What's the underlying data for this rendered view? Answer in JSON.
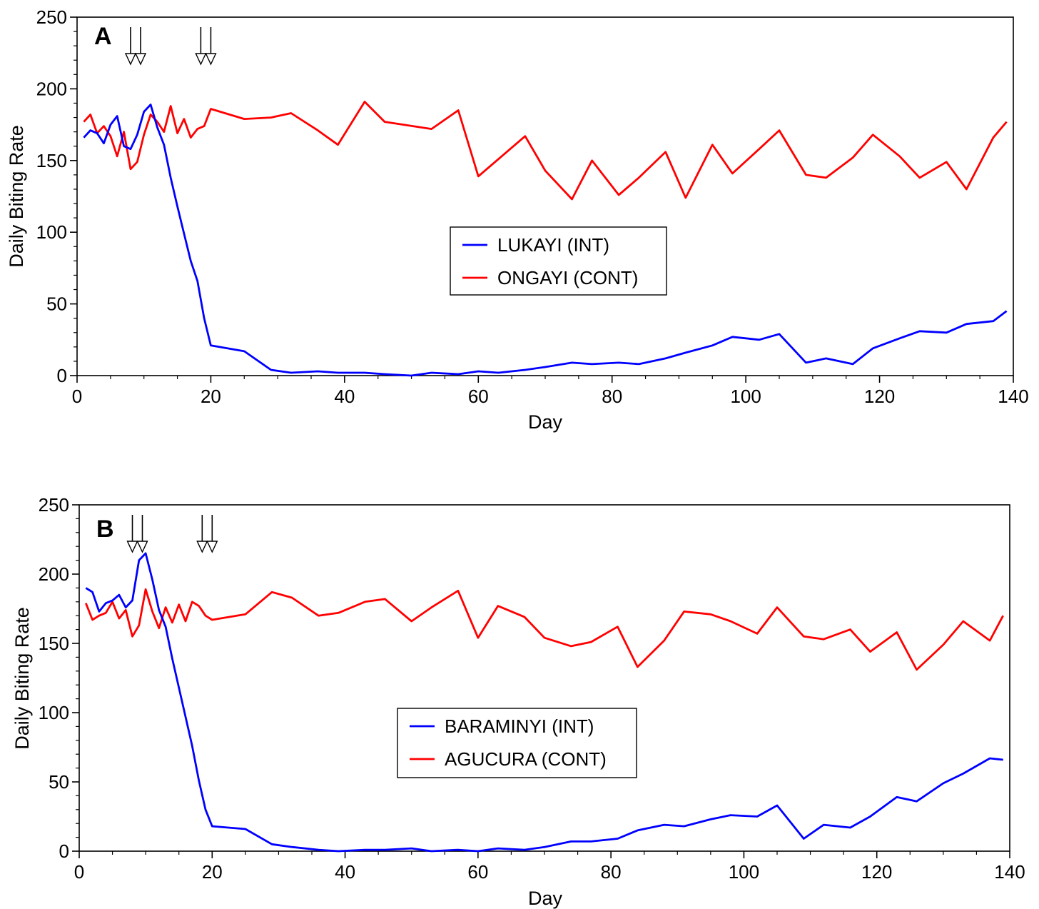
{
  "chart_data": [
    {
      "type": "line",
      "panel": "A",
      "xlabel": "Day",
      "ylabel": "Daily Biting Rate",
      "xlim": [
        0,
        140
      ],
      "ylim": [
        0,
        250
      ],
      "xticks": [
        0,
        20,
        40,
        60,
        80,
        100,
        120,
        140
      ],
      "yticks": [
        0,
        50,
        100,
        150,
        200,
        250
      ],
      "legend_position": "center",
      "arrows_at_days": [
        8,
        9.5,
        18.5,
        20
      ],
      "series": [
        {
          "name": "LUKAYI (INT)",
          "color": "#0000ff",
          "points": [
            [
              1,
              166
            ],
            [
              2,
              171
            ],
            [
              3,
              169
            ],
            [
              4,
              162
            ],
            [
              5,
              175
            ],
            [
              6,
              181
            ],
            [
              7,
              160
            ],
            [
              8,
              158
            ],
            [
              9,
              168
            ],
            [
              10,
              184
            ],
            [
              11,
              189
            ],
            [
              12,
              173
            ],
            [
              13,
              161
            ],
            [
              14,
              138
            ],
            [
              15,
              118
            ],
            [
              16,
              99
            ],
            [
              17,
              80
            ],
            [
              18,
              66
            ],
            [
              19,
              40
            ],
            [
              20,
              21
            ],
            [
              25,
              17
            ],
            [
              29,
              4
            ],
            [
              32,
              2
            ],
            [
              36,
              3
            ],
            [
              39,
              2
            ],
            [
              43,
              2
            ],
            [
              46,
              1
            ],
            [
              50,
              0
            ],
            [
              53,
              2
            ],
            [
              57,
              1
            ],
            [
              60,
              3
            ],
            [
              63,
              2
            ],
            [
              67,
              4
            ],
            [
              70,
              6
            ],
            [
              74,
              9
            ],
            [
              77,
              8
            ],
            [
              81,
              9
            ],
            [
              84,
              8
            ],
            [
              88,
              12
            ],
            [
              91,
              16
            ],
            [
              95,
              21
            ],
            [
              98,
              27
            ],
            [
              102,
              25
            ],
            [
              105,
              29
            ],
            [
              109,
              9
            ],
            [
              112,
              12
            ],
            [
              116,
              8
            ],
            [
              119,
              19
            ],
            [
              123,
              26
            ],
            [
              126,
              31
            ],
            [
              130,
              30
            ],
            [
              133,
              36
            ],
            [
              137,
              38
            ],
            [
              139,
              45
            ]
          ]
        },
        {
          "name": "ONGAYI (CONT)",
          "color": "#ff0000",
          "points": [
            [
              1,
              177
            ],
            [
              2,
              182
            ],
            [
              3,
              169
            ],
            [
              4,
              174
            ],
            [
              5,
              167
            ],
            [
              6,
              153
            ],
            [
              7,
              170
            ],
            [
              8,
              144
            ],
            [
              9,
              149
            ],
            [
              10,
              168
            ],
            [
              11,
              182
            ],
            [
              12,
              177
            ],
            [
              13,
              170
            ],
            [
              14,
              188
            ],
            [
              15,
              169
            ],
            [
              16,
              179
            ],
            [
              17,
              166
            ],
            [
              18,
              172
            ],
            [
              19,
              174
            ],
            [
              20,
              186
            ],
            [
              25,
              179
            ],
            [
              29,
              180
            ],
            [
              32,
              183
            ],
            [
              36,
              171
            ],
            [
              39,
              161
            ],
            [
              43,
              191
            ],
            [
              46,
              177
            ],
            [
              53,
              172
            ],
            [
              57,
              185
            ],
            [
              60,
              139
            ],
            [
              67,
              167
            ],
            [
              70,
              143
            ],
            [
              74,
              123
            ],
            [
              77,
              150
            ],
            [
              81,
              126
            ],
            [
              84,
              138
            ],
            [
              88,
              156
            ],
            [
              91,
              124
            ],
            [
              95,
              161
            ],
            [
              98,
              141
            ],
            [
              102,
              158
            ],
            [
              105,
              171
            ],
            [
              109,
              140
            ],
            [
              112,
              138
            ],
            [
              116,
              152
            ],
            [
              119,
              168
            ],
            [
              123,
              153
            ],
            [
              126,
              138
            ],
            [
              130,
              149
            ],
            [
              133,
              130
            ],
            [
              137,
              166
            ],
            [
              139,
              177
            ]
          ]
        }
      ]
    },
    {
      "type": "line",
      "panel": "B",
      "xlabel": "Day",
      "ylabel": "Daily Biting Rate",
      "xlim": [
        0,
        140
      ],
      "ylim": [
        0,
        250
      ],
      "xticks": [
        0,
        20,
        40,
        60,
        80,
        100,
        120,
        140
      ],
      "yticks": [
        0,
        50,
        100,
        150,
        200,
        250
      ],
      "legend_position": "center",
      "arrows_at_days": [
        8,
        9.5,
        18.5,
        20
      ],
      "series": [
        {
          "name": "BARAMINYI (INT)",
          "color": "#0000ff",
          "points": [
            [
              1,
              190
            ],
            [
              2,
              187
            ],
            [
              3,
              173
            ],
            [
              4,
              179
            ],
            [
              5,
              181
            ],
            [
              6,
              185
            ],
            [
              7,
              176
            ],
            [
              8,
              181
            ],
            [
              9,
              210
            ],
            [
              10,
              215
            ],
            [
              11,
              196
            ],
            [
              12,
              174
            ],
            [
              13,
              162
            ],
            [
              14,
              139
            ],
            [
              15,
              118
            ],
            [
              16,
              97
            ],
            [
              17,
              76
            ],
            [
              18,
              51
            ],
            [
              19,
              30
            ],
            [
              20,
              18
            ],
            [
              25,
              16
            ],
            [
              29,
              5
            ],
            [
              32,
              3
            ],
            [
              36,
              1
            ],
            [
              39,
              0
            ],
            [
              43,
              1
            ],
            [
              46,
              1
            ],
            [
              50,
              2
            ],
            [
              53,
              0
            ],
            [
              57,
              1
            ],
            [
              60,
              0
            ],
            [
              63,
              2
            ],
            [
              67,
              1
            ],
            [
              70,
              3
            ],
            [
              74,
              7
            ],
            [
              77,
              7
            ],
            [
              81,
              9
            ],
            [
              84,
              15
            ],
            [
              88,
              19
            ],
            [
              91,
              18
            ],
            [
              95,
              23
            ],
            [
              98,
              26
            ],
            [
              102,
              25
            ],
            [
              105,
              33
            ],
            [
              109,
              9
            ],
            [
              112,
              19
            ],
            [
              116,
              17
            ],
            [
              119,
              25
            ],
            [
              123,
              39
            ],
            [
              126,
              36
            ],
            [
              130,
              49
            ],
            [
              133,
              56
            ],
            [
              137,
              67
            ],
            [
              139,
              66
            ]
          ]
        },
        {
          "name": "AGUCURA (CONT)",
          "color": "#ff0000",
          "points": [
            [
              1,
              179
            ],
            [
              2,
              167
            ],
            [
              3,
              170
            ],
            [
              4,
              172
            ],
            [
              5,
              180
            ],
            [
              6,
              168
            ],
            [
              7,
              174
            ],
            [
              8,
              155
            ],
            [
              9,
              163
            ],
            [
              10,
              189
            ],
            [
              11,
              173
            ],
            [
              12,
              161
            ],
            [
              13,
              176
            ],
            [
              14,
              165
            ],
            [
              15,
              178
            ],
            [
              16,
              166
            ],
            [
              17,
              180
            ],
            [
              18,
              177
            ],
            [
              19,
              170
            ],
            [
              20,
              167
            ],
            [
              25,
              171
            ],
            [
              29,
              187
            ],
            [
              32,
              183
            ],
            [
              36,
              170
            ],
            [
              39,
              172
            ],
            [
              43,
              180
            ],
            [
              46,
              182
            ],
            [
              50,
              166
            ],
            [
              53,
              176
            ],
            [
              57,
              188
            ],
            [
              60,
              154
            ],
            [
              63,
              177
            ],
            [
              67,
              169
            ],
            [
              70,
              154
            ],
            [
              74,
              148
            ],
            [
              77,
              151
            ],
            [
              81,
              162
            ],
            [
              84,
              133
            ],
            [
              88,
              152
            ],
            [
              91,
              173
            ],
            [
              95,
              171
            ],
            [
              98,
              166
            ],
            [
              102,
              157
            ],
            [
              105,
              176
            ],
            [
              109,
              155
            ],
            [
              112,
              153
            ],
            [
              116,
              160
            ],
            [
              119,
              144
            ],
            [
              123,
              158
            ],
            [
              126,
              131
            ],
            [
              130,
              149
            ],
            [
              133,
              166
            ],
            [
              137,
              152
            ],
            [
              139,
              170
            ]
          ]
        }
      ]
    }
  ]
}
